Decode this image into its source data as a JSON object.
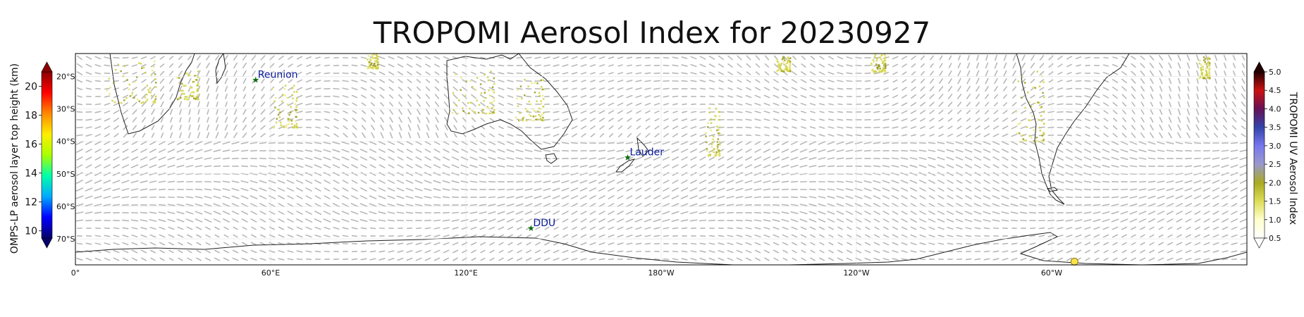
{
  "title": "TROPOMI Aerosol Index for 20230927",
  "chart_data": {
    "type": "map",
    "title": "TROPOMI Aerosol Index for 20230927",
    "x_ticks": [
      "0°",
      "60°E",
      "120°E",
      "180°W",
      "120°W",
      "60°W"
    ],
    "lat_ticks": [
      "20°S",
      "30°S",
      "40°S",
      "50°S",
      "60°S",
      "70°S"
    ],
    "stations": [
      {
        "name": "Reunion",
        "lon": 55.4,
        "lat": -21.1
      },
      {
        "name": "Lauder",
        "lon": 169.7,
        "lat": -45.0
      },
      {
        "name": "DDU",
        "lon": 140.0,
        "lat": -66.7
      }
    ],
    "ompslp_point": {
      "lon": 307,
      "lat": -77
    },
    "left_colorbar": {
      "label": "OMPS-LP aerosol layer top height (km)",
      "ticks": [
        "10",
        "12",
        "14",
        "16",
        "18",
        "20"
      ],
      "range": [
        9.5,
        21
      ],
      "colors": [
        "#08006b",
        "#0000ff",
        "#00aaff",
        "#00ffaa",
        "#aaff00",
        "#ffee00",
        "#ff8800",
        "#ff0000",
        "#8b0000"
      ]
    },
    "right_colorbar": {
      "label": "TROPOMI UV Aerosol Index",
      "ticks": [
        "0.5",
        "1.0",
        "1.5",
        "2.0",
        "2.5",
        "3.0",
        "3.5",
        "4.0",
        "4.5",
        "5.0"
      ],
      "range": [
        0.5,
        5.0
      ],
      "colors": [
        "#ffffff",
        "#ffffcc",
        "#dddd55",
        "#aaaa22",
        "#9999cc",
        "#7777ee",
        "#3344aa",
        "#661155",
        "#cc1111",
        "#220000"
      ]
    },
    "lon_range": [
      0,
      360
    ],
    "lat_range": [
      -78,
      -13
    ],
    "grid": true
  }
}
